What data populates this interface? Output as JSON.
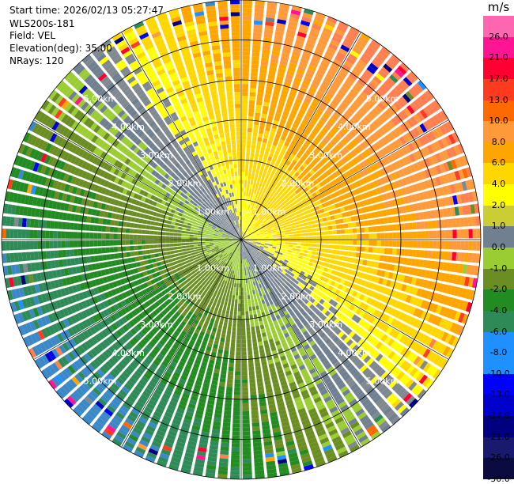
{
  "header": {
    "start_time": "Start time: 2026/02/13 05:27:47",
    "station": "WLS200s-181",
    "field": "Field: VEL",
    "elevation": "Elevation(deg): 35.00",
    "nrays": "NRays: 120"
  },
  "chart_data": {
    "type": "heatmap",
    "subtype": "ppi-polar",
    "field": "VEL",
    "units": "m/s",
    "elevation_deg": 35.0,
    "n_rays": 120,
    "max_range_km": 6.0,
    "range_rings_km": [
      1.0,
      2.0,
      3.0,
      4.0,
      5.0
    ],
    "range_ring_labels": [
      "1.00km",
      "2.00km",
      "3.00km",
      "4.00km",
      "5.00km"
    ],
    "azimuth_spokes_deg": [
      0,
      30,
      60,
      90,
      120,
      150,
      180,
      210,
      240,
      270,
      300,
      330
    ],
    "colorbar": {
      "levels": [
        "26.0",
        "21.0",
        "17.0",
        "13.0",
        "10.0",
        "8.0",
        "6.0",
        "4.0",
        "2.0",
        "1.0",
        "0.0",
        "-1.0",
        "-2.0",
        "-4.0",
        "-6.0",
        "-8.0",
        "-10.0",
        "-13.0",
        "-17.0",
        "-21.0",
        "-26.0",
        "-30.0"
      ],
      "colors": [
        "#ff66b2",
        "#ff1493",
        "#ff0033",
        "#ff3b1f",
        "#ff6a00",
        "#ff9a3a",
        "#ffa500",
        "#ffd700",
        "#ffff00",
        "#cccc33",
        "#708090",
        "#9acd32",
        "#6b8e23",
        "#228b22",
        "#2e8b57",
        "#1e90ff",
        "#1e90ff",
        "#0000ff",
        "#0000cd",
        "#000080",
        "#191970",
        "#0b0b40"
      ]
    },
    "velocity_pattern": {
      "description_values_ms": "Mean wind VAD pattern; approaching negative toward azimuth ~230 deg, receding positive toward ~50 deg",
      "peak_positive_ms": 8.0,
      "peak_negative_ms": -10.0,
      "positive_azimuth_deg": 50,
      "negative_azimuth_deg": 230
    }
  }
}
